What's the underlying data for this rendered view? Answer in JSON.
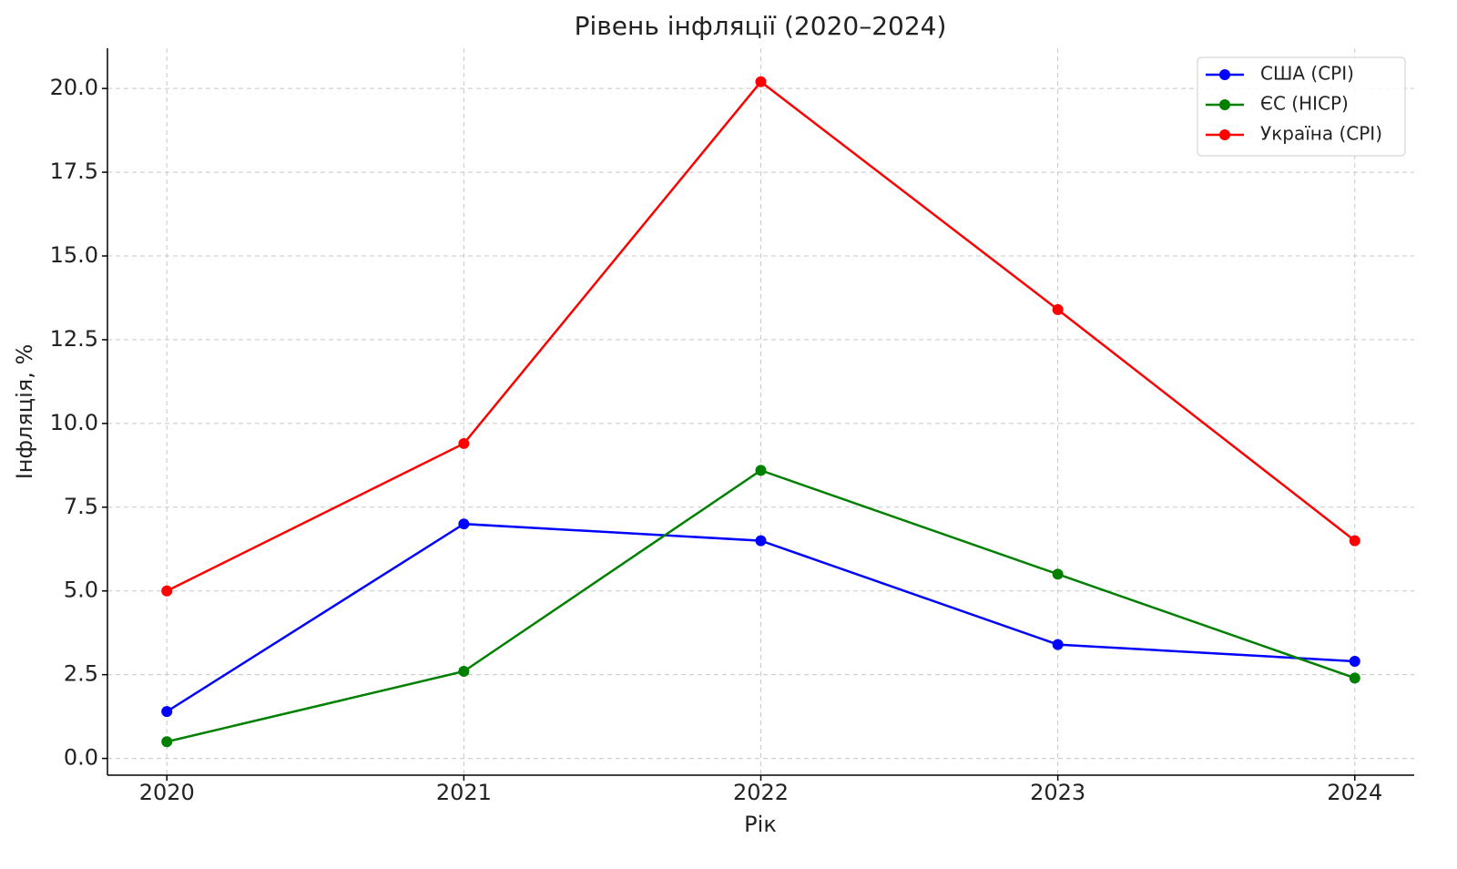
{
  "chart_data": {
    "type": "line",
    "title": "Рівень інфляції (2020–2024)",
    "x_label": "Рік",
    "y_label": "Інфляція, %",
    "x": [
      2020,
      2021,
      2022,
      2023,
      2024
    ],
    "series": [
      {
        "name": "США (CPI)",
        "color": "#0000ff",
        "values": [
          1.4,
          7.0,
          6.5,
          3.4,
          2.9
        ]
      },
      {
        "name": "ЄС (HICP)",
        "color": "#008000",
        "values": [
          0.5,
          2.6,
          8.6,
          5.5,
          2.4
        ]
      },
      {
        "name": "Україна (CPI)",
        "color": "#ff0000",
        "values": [
          5.0,
          9.4,
          20.2,
          13.4,
          6.5
        ]
      }
    ],
    "xlim": [
      2019.8,
      2024.2
    ],
    "xticks": [
      2020,
      2021,
      2022,
      2023,
      2024
    ],
    "ylim": [
      -0.5,
      21.2
    ],
    "yticks": [
      {
        "value": 0,
        "label": "0.0"
      },
      2.5,
      {
        "value": 5,
        "label": "5.0"
      },
      7.5,
      {
        "value": 10,
        "label": "10.0"
      },
      12.5,
      {
        "value": 15,
        "label": "15.0"
      },
      17.5,
      {
        "value": 20,
        "label": "20.0"
      }
    ],
    "grid": true,
    "legend": "upper right"
  }
}
